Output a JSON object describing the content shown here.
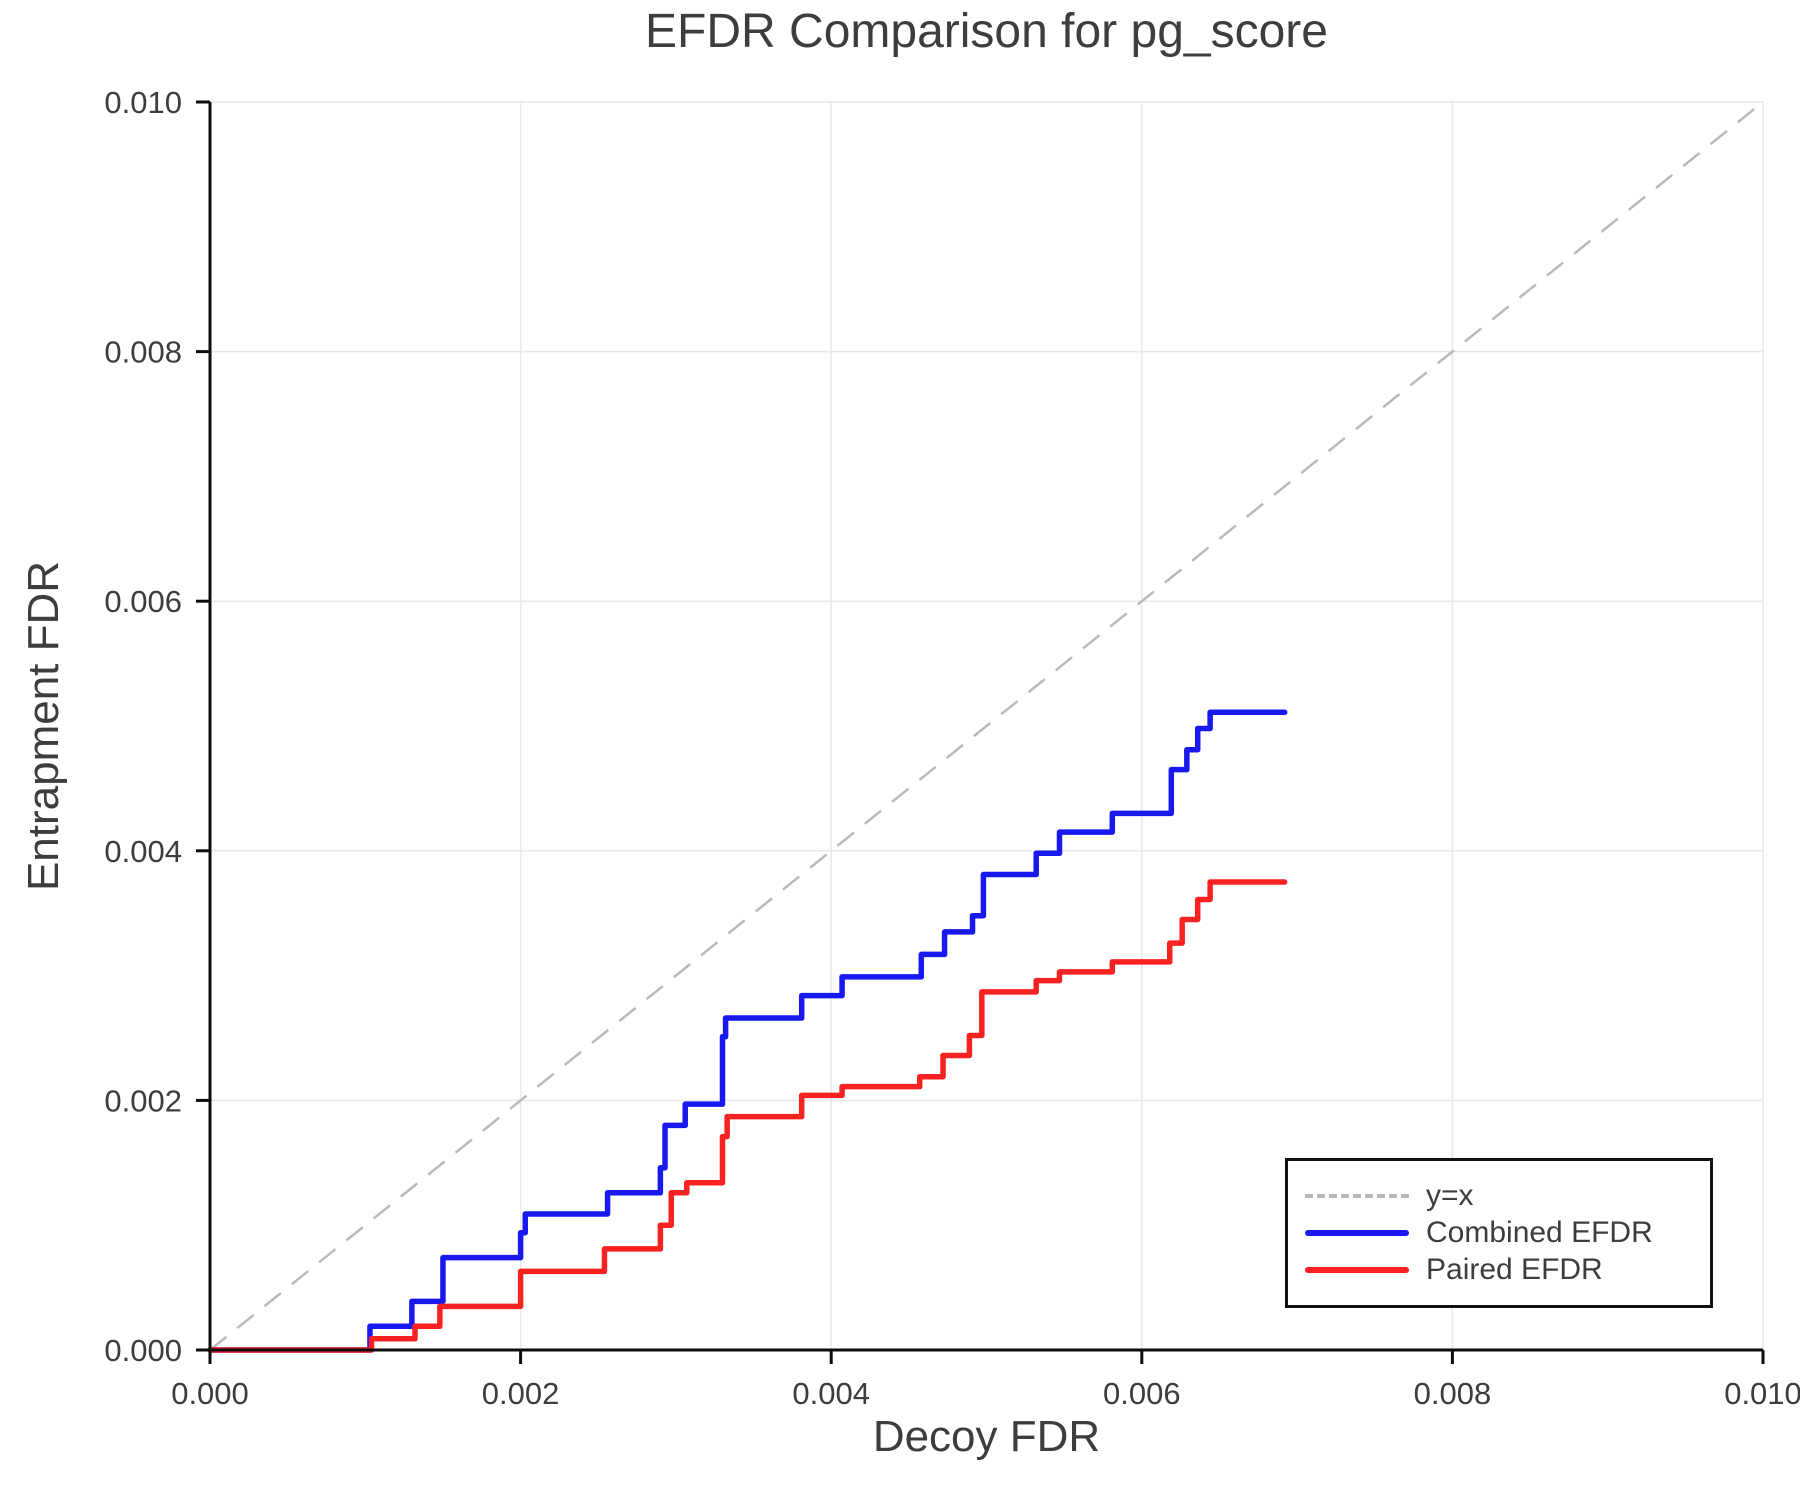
{
  "colors": {
    "background": "#ffffff",
    "grid": "#e9e9e9",
    "spine": "#0d0d0d",
    "text": "#3d3d3d",
    "identity_line": "#b9b9b9",
    "combined_line": "#1818f0",
    "paired_line": "#f82222"
  },
  "chart_data": {
    "type": "line",
    "title": "EFDR Comparison for pg_score",
    "xlabel": "Decoy FDR",
    "ylabel": "Entrapment FDR",
    "xlim": [
      0.0,
      0.01
    ],
    "ylim": [
      0.0,
      0.01
    ],
    "grid": true,
    "legend_position": "lower right",
    "x_ticks": [
      0.0,
      0.002,
      0.004,
      0.006,
      0.008,
      0.01
    ],
    "x_tick_labels": [
      "0.000",
      "0.002",
      "0.004",
      "0.006",
      "0.008",
      "0.010"
    ],
    "y_ticks": [
      0.0,
      0.002,
      0.004,
      0.006,
      0.008,
      0.01
    ],
    "y_tick_labels": [
      "0.000",
      "0.002",
      "0.004",
      "0.006",
      "0.008",
      "0.010"
    ],
    "reference_line": {
      "label": "y=x",
      "style": "dashed",
      "color": "#b9b9b9",
      "from": [
        0.0,
        0.0
      ],
      "to": [
        0.01,
        0.01
      ]
    },
    "series": [
      {
        "name": "Combined EFDR",
        "color": "#1818f0",
        "style": "solid",
        "step": "post",
        "points": [
          [
            0.0,
            0.0
          ],
          [
            0.00103,
            0.00019
          ],
          [
            0.0013,
            0.00039
          ],
          [
            0.0015,
            0.00074
          ],
          [
            0.002,
            0.00094
          ],
          [
            0.00203,
            0.00109
          ],
          [
            0.00256,
            0.00126
          ],
          [
            0.0029,
            0.00146
          ],
          [
            0.00293,
            0.0018
          ],
          [
            0.00306,
            0.00197
          ],
          [
            0.0033,
            0.00251
          ],
          [
            0.00332,
            0.00266
          ],
          [
            0.00381,
            0.00284
          ],
          [
            0.00407,
            0.00299
          ],
          [
            0.00458,
            0.00317
          ],
          [
            0.00473,
            0.00335
          ],
          [
            0.00491,
            0.00348
          ],
          [
            0.00498,
            0.00381
          ],
          [
            0.00532,
            0.00398
          ],
          [
            0.00547,
            0.00415
          ],
          [
            0.00581,
            0.0043
          ],
          [
            0.00619,
            0.00465
          ],
          [
            0.00629,
            0.00481
          ],
          [
            0.00636,
            0.00498
          ],
          [
            0.00644,
            0.00511
          ],
          [
            0.00692,
            0.00511
          ]
        ]
      },
      {
        "name": "Paired EFDR",
        "color": "#f82222",
        "style": "solid",
        "step": "post",
        "points": [
          [
            0.0,
            0.0
          ],
          [
            0.00104,
            9e-05
          ],
          [
            0.00132,
            0.00019
          ],
          [
            0.00148,
            0.00035
          ],
          [
            0.002,
            0.00063
          ],
          [
            0.00254,
            0.00081
          ],
          [
            0.0029,
            0.001
          ],
          [
            0.00297,
            0.00126
          ],
          [
            0.00307,
            0.00134
          ],
          [
            0.0033,
            0.00171
          ],
          [
            0.00333,
            0.00187
          ],
          [
            0.00381,
            0.00204
          ],
          [
            0.00407,
            0.00211
          ],
          [
            0.00457,
            0.00219
          ],
          [
            0.00472,
            0.00236
          ],
          [
            0.00489,
            0.00252
          ],
          [
            0.00497,
            0.00287
          ],
          [
            0.00532,
            0.00296
          ],
          [
            0.00547,
            0.00303
          ],
          [
            0.00581,
            0.00311
          ],
          [
            0.00618,
            0.00326
          ],
          [
            0.00626,
            0.00345
          ],
          [
            0.00636,
            0.00361
          ],
          [
            0.00644,
            0.00375
          ],
          [
            0.00692,
            0.00375
          ]
        ]
      }
    ],
    "legend": [
      {
        "label": "y=x"
      },
      {
        "label": "Combined EFDR"
      },
      {
        "label": "Paired EFDR"
      }
    ]
  }
}
